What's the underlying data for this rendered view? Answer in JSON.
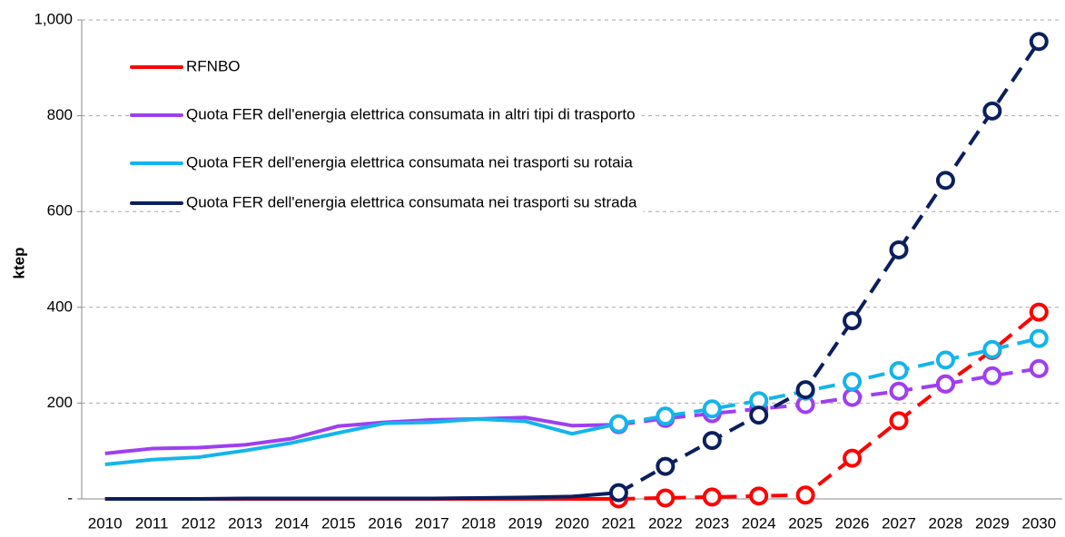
{
  "chart_data": {
    "type": "line",
    "y_label": "ktep",
    "categories": [
      "2010",
      "2011",
      "2012",
      "2013",
      "2014",
      "2015",
      "2016",
      "2017",
      "2018",
      "2019",
      "2020",
      "2021",
      "2022",
      "2023",
      "2024",
      "2025",
      "2026",
      "2027",
      "2028",
      "2029",
      "2030"
    ],
    "dashed_from": "2021",
    "series": [
      {
        "name": "RFNBO",
        "color": "#ff0000",
        "values": [
          0,
          0,
          0,
          0,
          0,
          0,
          0,
          0,
          0,
          0,
          0,
          0,
          2,
          4,
          6,
          8,
          85,
          163,
          240,
          310,
          390
        ]
      },
      {
        "name": "Quota FER dell'energia elettrica consumata in altri tipi di trasporto",
        "color": "#9e3ff0",
        "values": [
          95,
          105,
          107,
          113,
          126,
          152,
          160,
          165,
          167,
          170,
          153,
          155,
          168,
          178,
          188,
          197,
          212,
          225,
          240,
          257,
          272
        ]
      },
      {
        "name": "Quota FER dell'energia elettrica consumata nei trasporti su rotaia",
        "color": "#14b4eb",
        "values": [
          72,
          82,
          87,
          101,
          117,
          138,
          158,
          160,
          167,
          162,
          136,
          157,
          173,
          188,
          205,
          225,
          245,
          268,
          290,
          312,
          335
        ]
      },
      {
        "name": "Quota FER dell'energia elettrica consumata nei trasporti su strada",
        "color": "#0b1f5e",
        "values": [
          0,
          0,
          0,
          1,
          1,
          1,
          1,
          1,
          2,
          3,
          5,
          13,
          68,
          122,
          175,
          228,
          372,
          520,
          665,
          810,
          955
        ]
      }
    ],
    "ylim": [
      0,
      1000
    ],
    "yticks": [
      {
        "value": 0,
        "label": "-"
      },
      200,
      400,
      600,
      800,
      {
        "value": 1000,
        "label": "1,000"
      }
    ],
    "grid": true,
    "legend": "top-left"
  }
}
